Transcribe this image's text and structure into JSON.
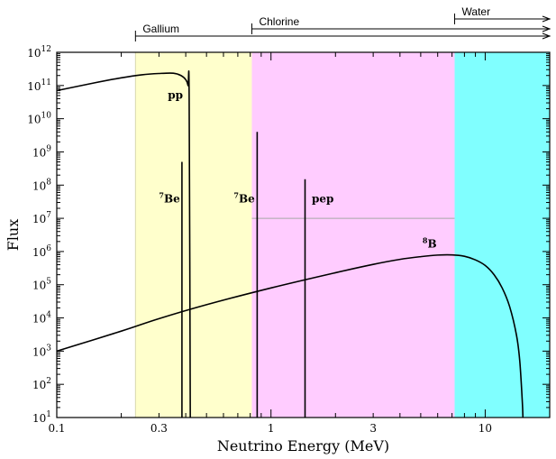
{
  "chart_data": {
    "type": "line",
    "title": "",
    "xlabel": "Neutrino Energy (MeV)",
    "ylabel": "Flux",
    "x_scale": "log",
    "y_scale": "log",
    "xlim": [
      0.1,
      20
    ],
    "ylim": [
      10,
      1000000000000
    ],
    "x_ticks": [
      {
        "value": 0.1,
        "label": "0.1"
      },
      {
        "value": 0.3,
        "label": "0.3"
      },
      {
        "value": 1,
        "label": "1"
      },
      {
        "value": 3,
        "label": "3"
      },
      {
        "value": 10,
        "label": "10"
      }
    ],
    "y_ticks": [
      {
        "value": 10,
        "base": "10",
        "exp": "1"
      },
      {
        "value": 100,
        "base": "10",
        "exp": "2"
      },
      {
        "value": 1000,
        "base": "10",
        "exp": "3"
      },
      {
        "value": 10000,
        "base": "10",
        "exp": "4"
      },
      {
        "value": 100000,
        "base": "10",
        "exp": "5"
      },
      {
        "value": 1000000,
        "base": "10",
        "exp": "6"
      },
      {
        "value": 10000000,
        "base": "10",
        "exp": "7"
      },
      {
        "value": 100000000,
        "base": "10",
        "exp": "8"
      },
      {
        "value": 1000000000,
        "base": "10",
        "exp": "9"
      },
      {
        "value": 10000000000,
        "base": "10",
        "exp": "10"
      },
      {
        "value": 100000000000,
        "base": "10",
        "exp": "11"
      },
      {
        "value": 1000000000000,
        "base": "10",
        "exp": "12"
      }
    ],
    "regions": [
      {
        "name": "Gallium",
        "x_start": 0.233,
        "x_end": 0.814,
        "color": "#ffffcc"
      },
      {
        "name": "Chlorine",
        "x_start": 0.814,
        "x_end": 7.2,
        "color": "#ffccff"
      },
      {
        "name": "Water",
        "x_start": 7.2,
        "x_end": 20,
        "color": "#80ffff"
      }
    ],
    "detector_thresholds": [
      {
        "name": "Gallium",
        "x_start": 0.233
      },
      {
        "name": "Chlorine",
        "x_start": 0.814
      },
      {
        "name": "Water",
        "x_start": 7.2
      }
    ],
    "series": [
      {
        "name": "pp",
        "points": [
          [
            0.1,
            70000000000
          ],
          [
            0.15,
            120000000000
          ],
          [
            0.2,
            170000000000
          ],
          [
            0.25,
            210000000000
          ],
          [
            0.3,
            230000000000
          ],
          [
            0.35,
            235000000000
          ],
          [
            0.38,
            200000000000
          ],
          [
            0.4,
            150000000000
          ],
          [
            0.41,
            100000000000
          ],
          [
            0.415,
            40000000000
          ],
          [
            0.42,
            10
          ]
        ]
      },
      {
        "name": "8B",
        "points": [
          [
            0.1,
            1000
          ],
          [
            0.2,
            4000
          ],
          [
            0.3,
            9500
          ],
          [
            0.5,
            25000
          ],
          [
            1,
            80000
          ],
          [
            2,
            230000
          ],
          [
            3,
            410000
          ],
          [
            4,
            580000
          ],
          [
            5,
            700000
          ],
          [
            6,
            780000
          ],
          [
            7,
            790000
          ],
          [
            8,
            720000
          ],
          [
            9,
            560000
          ],
          [
            10,
            380000
          ],
          [
            11,
            200000
          ],
          [
            12,
            80000
          ],
          [
            13,
            22000
          ],
          [
            14,
            3000
          ],
          [
            14.5,
            500
          ],
          [
            14.9,
            30
          ],
          [
            15,
            10
          ]
        ]
      }
    ],
    "lines": [
      {
        "name": "7Be",
        "x": 0.384,
        "y_top": 500000000
      },
      {
        "name": "7Be",
        "x": 0.862,
        "y_top": 4000000000
      },
      {
        "name": "pep",
        "x": 1.442,
        "y_top": 150000000
      }
    ],
    "hline": {
      "y": 10000000,
      "x_start": 0.814,
      "x_end": 7.2
    },
    "annotations": [
      {
        "id": "pp",
        "sup": "",
        "text": "pp",
        "x": 0.33,
        "y": 40000000000
      },
      {
        "id": "be7-1",
        "sup": "7",
        "text": "Be",
        "x": 0.3,
        "y": 30000000
      },
      {
        "id": "be7-2",
        "sup": "7",
        "text": "Be",
        "x": 0.67,
        "y": 30000000
      },
      {
        "id": "pep",
        "sup": "",
        "text": "pep",
        "x": 1.55,
        "y": 30000000
      },
      {
        "id": "b8",
        "sup": "8",
        "text": "B",
        "x": 5.1,
        "y": 1300000
      }
    ]
  }
}
